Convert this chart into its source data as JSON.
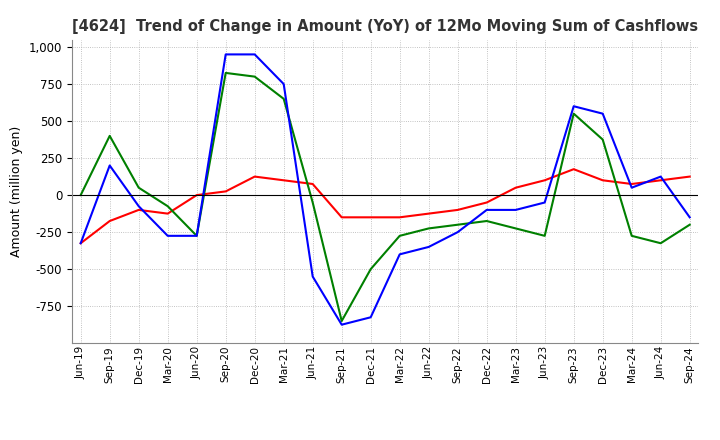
{
  "title": "[4624]  Trend of Change in Amount (YoY) of 12Mo Moving Sum of Cashflows",
  "ylabel": "Amount (million yen)",
  "ylim": [
    -1000,
    1050
  ],
  "yticks": [
    -750,
    -500,
    -250,
    0,
    250,
    500,
    750,
    1000
  ],
  "x_labels": [
    "Jun-19",
    "Sep-19",
    "Dec-19",
    "Mar-20",
    "Jun-20",
    "Sep-20",
    "Dec-20",
    "Mar-21",
    "Jun-21",
    "Sep-21",
    "Dec-21",
    "Mar-22",
    "Jun-22",
    "Sep-22",
    "Dec-22",
    "Mar-23",
    "Jun-23",
    "Sep-23",
    "Dec-23",
    "Mar-24",
    "Jun-24",
    "Sep-24"
  ],
  "operating": [
    -325,
    -175,
    -100,
    -125,
    0,
    25,
    125,
    100,
    75,
    -150,
    -150,
    -150,
    -125,
    -100,
    -50,
    50,
    100,
    175,
    100,
    75,
    100,
    125
  ],
  "investing": [
    0,
    400,
    50,
    -75,
    -275,
    825,
    800,
    650,
    -50,
    -850,
    -500,
    -275,
    -225,
    -200,
    -175,
    -225,
    -275,
    550,
    375,
    -275,
    -325,
    -200
  ],
  "free": [
    -325,
    200,
    -75,
    -275,
    -275,
    950,
    950,
    750,
    -550,
    -875,
    -825,
    -400,
    -350,
    -250,
    -100,
    -100,
    -50,
    600,
    550,
    50,
    125,
    -150
  ],
  "op_color": "#ff0000",
  "inv_color": "#008000",
  "free_color": "#0000ff",
  "bg_color": "#ffffff",
  "grid_color": "#b0b0b0",
  "title_color": "#333333"
}
